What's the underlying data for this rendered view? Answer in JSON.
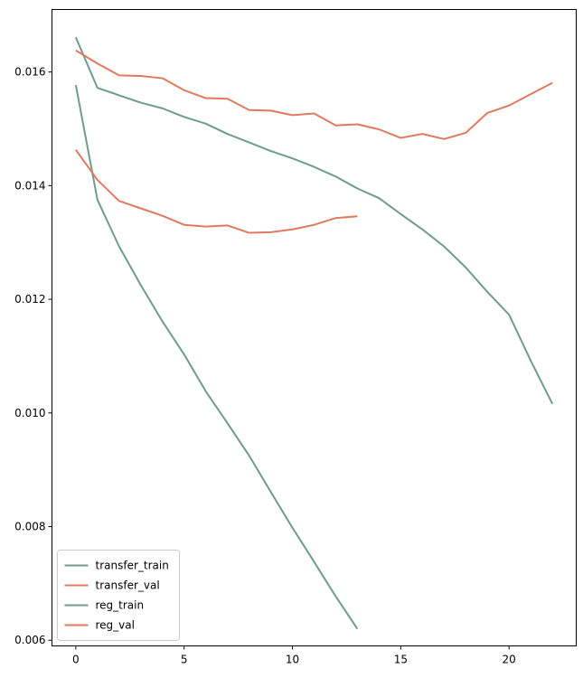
{
  "chart_data": {
    "type": "line",
    "title": "",
    "xlabel": "",
    "ylabel": "",
    "xlim": [
      -1.1,
      23.1
    ],
    "ylim": [
      0.0059,
      0.0171
    ],
    "x_ticks": [
      0,
      5,
      10,
      15,
      20
    ],
    "y_ticks": [
      0.006,
      0.008,
      0.01,
      0.012,
      0.014,
      0.016
    ],
    "grid": false,
    "legend_position": "lower-left",
    "series": [
      {
        "name": "transfer_train",
        "color": "#6f9c8a",
        "x": [
          0,
          1,
          2,
          3,
          4,
          5,
          6,
          7,
          8,
          9,
          10,
          11,
          12,
          13,
          14,
          15,
          16,
          17,
          18,
          19,
          20,
          21,
          22
        ],
        "y": [
          0.01661,
          0.01572,
          0.01559,
          0.01546,
          0.01536,
          0.01521,
          0.01509,
          0.01491,
          0.01476,
          0.01461,
          0.01448,
          0.01433,
          0.01416,
          0.01395,
          0.01378,
          0.0135,
          0.01323,
          0.01293,
          0.01256,
          0.01213,
          0.01173,
          0.01092,
          0.01016
        ]
      },
      {
        "name": "transfer_val",
        "color": "#e07a5f",
        "x": [
          0,
          1,
          2,
          3,
          4,
          5,
          6,
          7,
          8,
          9,
          10,
          11,
          12,
          13,
          14,
          15,
          16,
          17,
          18,
          19,
          20,
          21,
          22
        ],
        "y": [
          0.01638,
          0.01615,
          0.01594,
          0.01593,
          0.01589,
          0.01568,
          0.01554,
          0.01553,
          0.01533,
          0.01532,
          0.01524,
          0.01527,
          0.01506,
          0.01508,
          0.01499,
          0.01484,
          0.01491,
          0.01482,
          0.01493,
          0.01528,
          0.01541,
          0.01561,
          0.01581
        ]
      },
      {
        "name": "reg_train",
        "color": "#6f9c8a",
        "x": [
          0,
          1,
          2,
          3,
          4,
          5,
          6,
          7,
          8,
          9,
          10,
          11,
          12,
          13
        ],
        "y": [
          0.01577,
          0.01375,
          0.01293,
          0.01225,
          0.01161,
          0.01103,
          0.01038,
          0.00982,
          0.00925,
          0.00861,
          0.00798,
          0.00738,
          0.00677,
          0.0062
        ]
      },
      {
        "name": "reg_val",
        "color": "#e07a5f",
        "x": [
          0,
          1,
          2,
          3,
          4,
          5,
          6,
          7,
          8,
          9,
          10,
          11,
          12,
          13
        ],
        "y": [
          0.01463,
          0.0141,
          0.01373,
          0.0136,
          0.01347,
          0.01331,
          0.01328,
          0.0133,
          0.01317,
          0.01318,
          0.01323,
          0.01331,
          0.01343,
          0.01346
        ]
      }
    ]
  }
}
